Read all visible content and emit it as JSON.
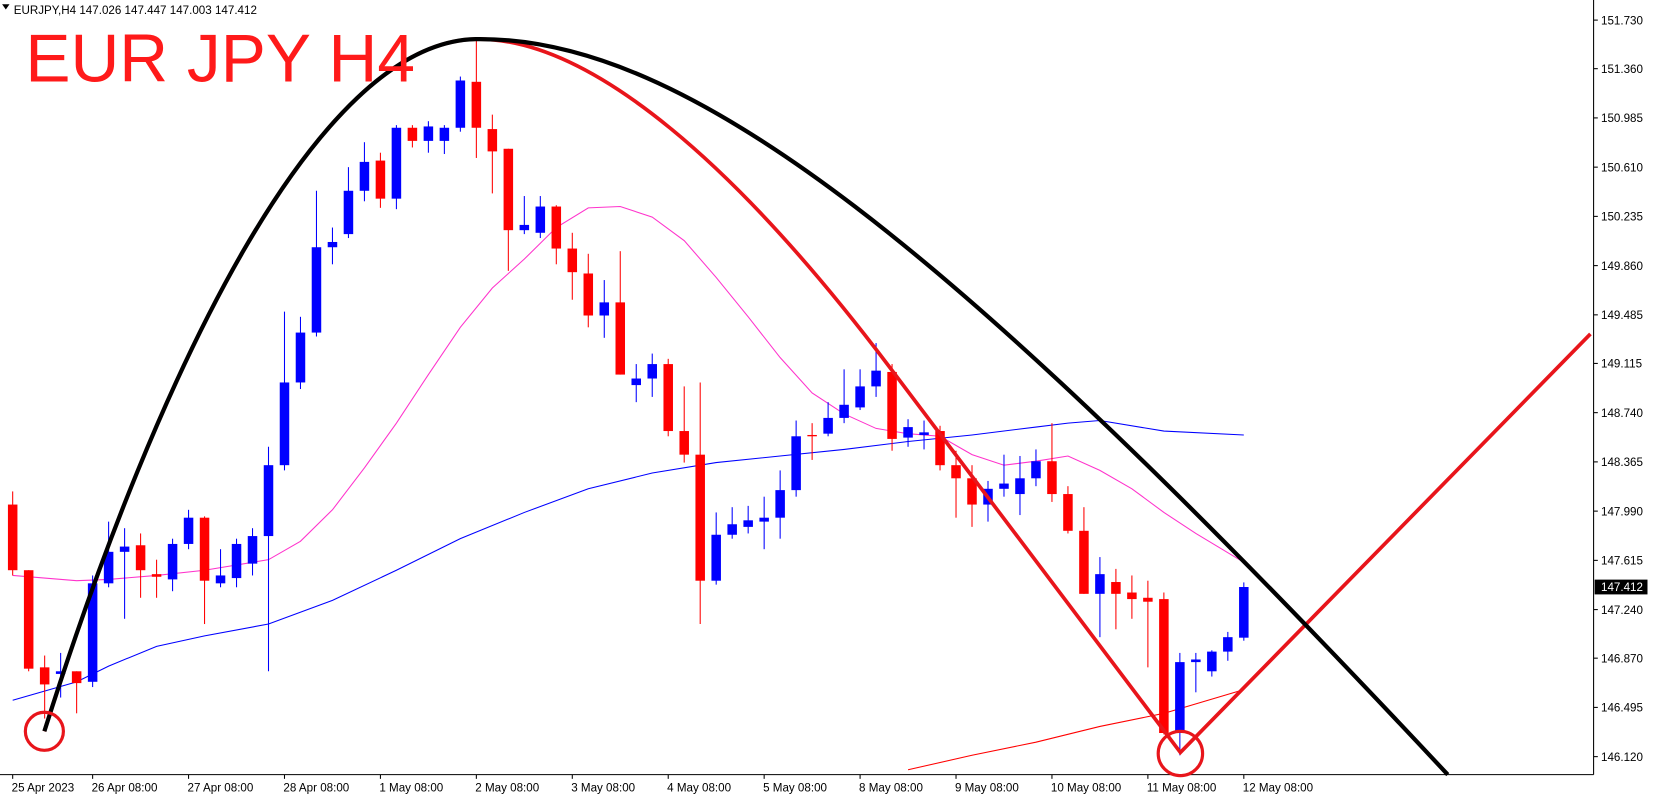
{
  "chart_data": {
    "type": "candlestick",
    "symbol": "EURJPY,H4",
    "title": "EUR JPY H4",
    "up_color": "#0000ff",
    "down_color": "#ff0000",
    "categories": [
      "25 Apr 2023",
      null,
      null,
      null,
      null,
      "26 Apr 08:00",
      null,
      null,
      null,
      null,
      null,
      "27 Apr 08:00",
      null,
      null,
      null,
      null,
      null,
      "28 Apr 08:00",
      null,
      null,
      null,
      null,
      null,
      "1 May 08:00",
      null,
      null,
      null,
      null,
      null,
      "2 May 08:00",
      null,
      null,
      null,
      null,
      null,
      "3 May 08:00",
      null,
      null,
      null,
      null,
      null,
      "4 May 08:00",
      null,
      null,
      null,
      null,
      null,
      "5 May 08:00",
      null,
      null,
      null,
      null,
      null,
      "8 May 08:00",
      null,
      null,
      null,
      null,
      null,
      "9 May 08:00",
      null,
      null,
      null,
      null,
      null,
      "10 May 08:00",
      null,
      null,
      null,
      null,
      null,
      "11 May 08:00",
      null,
      null,
      null,
      null,
      null,
      "12 May 08:00"
    ],
    "open": [
      148.04,
      147.54,
      146.8,
      146.75,
      146.77,
      146.69,
      147.44,
      147.68,
      147.73,
      147.51,
      147.47,
      147.74,
      147.94,
      147.44,
      147.48,
      147.59,
      147.8,
      148.34,
      148.97,
      149.35,
      150.0,
      150.1,
      150.43,
      150.66,
      150.37,
      150.91,
      150.81,
      150.81,
      150.91,
      151.26,
      150.9,
      150.75,
      150.13,
      150.11,
      150.31,
      149.99,
      149.8,
      149.48,
      149.58,
      148.95,
      149.0,
      149.11,
      148.6,
      148.42,
      147.46,
      147.81,
      147.87,
      147.91,
      147.94,
      148.15,
      148.57,
      148.58,
      148.7,
      148.78,
      148.94,
      149.05,
      148.55,
      148.57,
      148.6,
      148.34,
      148.24,
      148.04,
      148.16,
      148.12,
      148.24,
      148.37,
      148.12,
      147.84,
      147.36,
      147.45,
      147.37,
      147.33,
      147.32,
      146.3,
      146.84,
      146.77,
      146.92,
      147.026
    ],
    "high": [
      148.14,
      147.54,
      146.89,
      146.91,
      146.77,
      147.5,
      147.91,
      147.86,
      147.82,
      147.62,
      147.78,
      148.0,
      147.95,
      147.7,
      147.78,
      147.86,
      148.48,
      149.51,
      149.47,
      150.43,
      150.15,
      150.61,
      150.8,
      150.72,
      150.93,
      150.93,
      150.96,
      150.93,
      151.3,
      151.58,
      151.01,
      150.75,
      150.39,
      150.39,
      150.32,
      150.11,
      149.95,
      149.75,
      149.97,
      149.11,
      149.19,
      149.15,
      148.94,
      148.97,
      147.98,
      148.02,
      148.03,
      148.1,
      148.3,
      148.68,
      148.66,
      148.82,
      149.07,
      149.07,
      149.27,
      149.11,
      148.69,
      148.68,
      148.64,
      148.45,
      148.34,
      148.22,
      148.42,
      148.41,
      148.46,
      148.66,
      148.18,
      148.02,
      147.64,
      147.55,
      147.5,
      147.46,
      147.37,
      146.91,
      146.91,
      146.93,
      147.07,
      147.447
    ],
    "low": [
      147.5,
      146.77,
      146.41,
      146.57,
      146.45,
      146.65,
      147.41,
      147.17,
      147.33,
      147.33,
      147.38,
      147.7,
      147.13,
      147.41,
      147.41,
      147.5,
      146.77,
      148.3,
      148.92,
      149.32,
      149.87,
      150.07,
      150.35,
      150.3,
      150.29,
      150.76,
      150.72,
      150.71,
      150.88,
      150.68,
      150.41,
      149.82,
      150.1,
      150.07,
      149.87,
      149.6,
      149.39,
      149.31,
      149.03,
      148.82,
      148.86,
      148.56,
      148.36,
      147.13,
      147.43,
      147.78,
      147.82,
      147.7,
      147.78,
      148.1,
      148.38,
      148.56,
      148.66,
      148.76,
      148.86,
      148.45,
      148.48,
      148.46,
      148.3,
      147.94,
      147.87,
      147.91,
      148.1,
      147.96,
      148.18,
      148.06,
      147.82,
      147.36,
      147.03,
      147.09,
      147.17,
      146.8,
      146.29,
      146.13,
      146.61,
      146.73,
      146.85,
      147.003
    ],
    "close": [
      147.54,
      146.79,
      146.67,
      146.77,
      146.68,
      147.44,
      147.68,
      147.72,
      147.54,
      147.49,
      147.74,
      147.94,
      147.46,
      147.5,
      147.74,
      147.8,
      148.34,
      148.97,
      149.35,
      150.0,
      150.04,
      150.43,
      150.65,
      150.37,
      150.91,
      150.81,
      150.92,
      150.91,
      151.27,
      150.91,
      150.73,
      150.13,
      150.17,
      150.31,
      149.99,
      149.81,
      149.48,
      149.58,
      149.03,
      149.0,
      149.11,
      148.6,
      148.42,
      147.46,
      147.81,
      147.89,
      147.92,
      147.94,
      148.15,
      148.56,
      148.56,
      148.7,
      148.8,
      148.94,
      149.06,
      148.54,
      148.63,
      148.59,
      148.34,
      148.24,
      148.04,
      148.16,
      148.2,
      148.24,
      148.37,
      148.12,
      147.84,
      147.36,
      147.51,
      147.36,
      147.32,
      147.3,
      146.3,
      146.84,
      146.86,
      146.92,
      147.03,
      147.412
    ],
    "overlays": [
      {
        "color": "#ff33cc",
        "x": [
          0,
          4,
          6,
          9,
          12,
          16,
          18,
          20,
          22,
          24,
          26,
          28,
          30,
          32,
          34,
          36,
          38,
          40,
          42,
          44,
          46,
          48,
          50,
          52,
          54,
          56,
          58,
          60,
          62,
          64,
          66,
          68,
          70,
          72,
          74,
          77
        ],
        "values": [
          147.5,
          147.46,
          147.47,
          147.5,
          147.54,
          147.62,
          147.76,
          148.0,
          148.32,
          148.66,
          149.03,
          149.39,
          149.69,
          149.91,
          150.15,
          150.3,
          150.31,
          150.23,
          150.05,
          149.77,
          149.47,
          149.16,
          148.89,
          148.73,
          148.62,
          148.58,
          148.56,
          148.42,
          148.34,
          148.37,
          148.41,
          148.3,
          148.16,
          147.98,
          147.82,
          147.6
        ]
      },
      {
        "color": "#0000ff",
        "x": [
          0,
          4,
          6,
          9,
          12,
          16,
          20,
          24,
          28,
          32,
          36,
          40,
          44,
          48,
          52,
          56,
          60,
          64,
          66,
          68,
          72,
          77
        ],
        "values": [
          146.55,
          146.69,
          146.81,
          146.96,
          147.04,
          147.13,
          147.31,
          147.54,
          147.78,
          147.98,
          148.16,
          148.28,
          148.36,
          148.41,
          148.46,
          148.52,
          148.57,
          148.63,
          148.66,
          148.68,
          148.6,
          148.57
        ]
      },
      {
        "color": "#ff0000",
        "x": [
          56,
          60,
          64,
          68,
          72,
          77
        ],
        "values": [
          146.02,
          146.13,
          146.23,
          146.35,
          146.45,
          146.63
        ]
      }
    ],
    "ylim": [
      145.983,
      151.883
    ],
    "yticks": [
      {
        "value": 151.73,
        "label": "151.730"
      },
      {
        "value": 151.36,
        "label": "151.360"
      },
      150.985,
      {
        "value": 150.61,
        "label": "150.610"
      },
      150.235,
      {
        "value": 149.86,
        "label": "149.860"
      },
      149.485,
      149.115,
      {
        "value": 148.74,
        "label": "148.740"
      },
      148.365,
      {
        "value": 147.99,
        "label": "147.990"
      },
      147.615,
      {
        "value": 147.24,
        "label": "147.240"
      },
      {
        "value": 146.87,
        "label": "146.870"
      },
      146.495,
      {
        "value": 146.12,
        "label": "146.120"
      }
    ]
  }
}
